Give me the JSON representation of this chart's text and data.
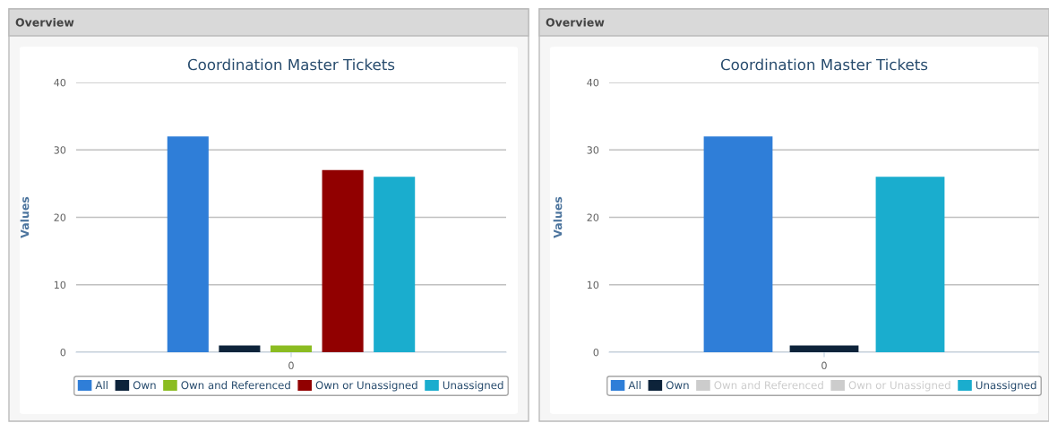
{
  "chart_data": [
    {
      "type": "bar",
      "title": "Coordination Master Tickets",
      "ylabel": "Values",
      "annotations": [
        "Overview"
      ],
      "categories": [
        "0"
      ],
      "ylim": [
        0,
        40
      ],
      "yticks": [
        0,
        10,
        20,
        30,
        40
      ],
      "grid": "y",
      "legend": "bottom",
      "series": [
        {
          "name": "All",
          "color": "#2f7ed8",
          "values": [
            32
          ]
        },
        {
          "name": "Own",
          "color": "#0d233a",
          "values": [
            1
          ]
        },
        {
          "name": "Own and Referenced",
          "color": "#8bbc21",
          "values": [
            1
          ]
        },
        {
          "name": "Own or Unassigned",
          "color": "#910000",
          "values": [
            27
          ]
        },
        {
          "name": "Unassigned",
          "color": "#1aadce",
          "values": [
            26
          ]
        }
      ]
    },
    {
      "type": "bar",
      "title": "Coordination Master Tickets",
      "ylabel": "Values",
      "annotations": [
        "Overview"
      ],
      "categories": [
        "0"
      ],
      "ylim": [
        0,
        40
      ],
      "yticks": [
        0,
        10,
        20,
        30,
        40
      ],
      "grid": "y",
      "legend": "bottom",
      "series": [
        {
          "name": "All",
          "color": "#2f7ed8",
          "values": [
            32
          ]
        },
        {
          "name": "Own",
          "color": "#0d233a",
          "values": [
            1
          ]
        },
        {
          "name": "Own and Referenced",
          "color": "#cccccc",
          "values": [
            null
          ]
        },
        {
          "name": "Own or Unassigned",
          "color": "#cccccc",
          "values": [
            null
          ]
        },
        {
          "name": "Unassigned",
          "color": "#1aadce",
          "values": [
            26
          ]
        }
      ]
    }
  ]
}
